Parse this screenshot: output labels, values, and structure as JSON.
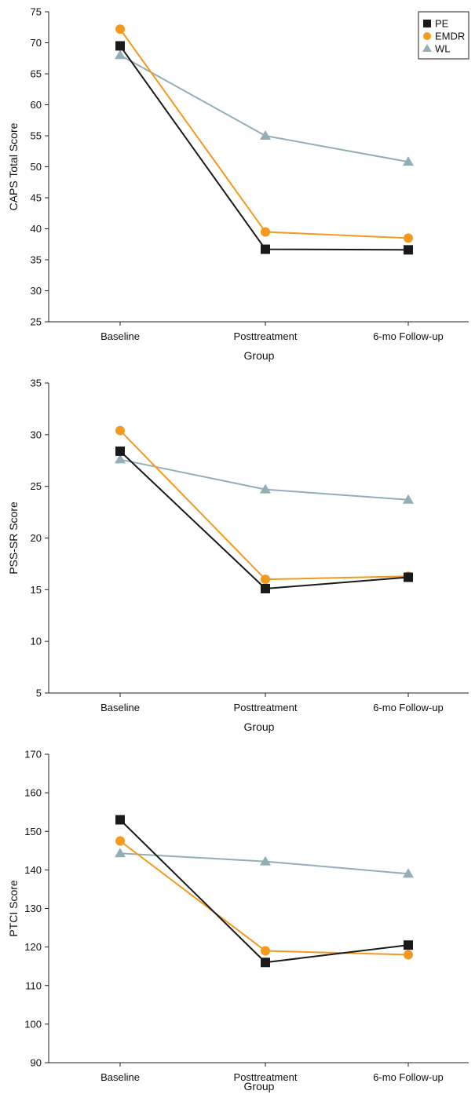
{
  "chart_data": [
    {
      "type": "line",
      "categories": [
        "Baseline",
        "Posttreatment",
        "6-mo Follow-up"
      ],
      "xlabel": "Group",
      "ylabel": "CAPS Total Score",
      "ylim": [
        25,
        75
      ],
      "yticks": [
        25,
        30,
        35,
        40,
        45,
        50,
        55,
        60,
        65,
        70,
        75
      ],
      "legend_position": "top-right",
      "series": [
        {
          "name": "PE",
          "color": "#1a1a1a",
          "marker": "square",
          "values": [
            69.5,
            36.7,
            36.6
          ]
        },
        {
          "name": "EMDR",
          "color": "#f39a1e",
          "marker": "circle",
          "values": [
            72.2,
            39.5,
            38.5
          ]
        },
        {
          "name": "WL",
          "color": "#94aeb8",
          "marker": "triangle",
          "values": [
            68.0,
            55.0,
            50.8
          ]
        }
      ]
    },
    {
      "type": "line",
      "categories": [
        "Baseline",
        "Posttreatment",
        "6-mo Follow-up"
      ],
      "xlabel": "Group",
      "ylabel": "PSS-SR Score",
      "ylim": [
        5,
        35
      ],
      "yticks": [
        5,
        10,
        15,
        20,
        25,
        30,
        35
      ],
      "series": [
        {
          "name": "PE",
          "color": "#1a1a1a",
          "marker": "square",
          "values": [
            28.4,
            15.1,
            16.2
          ]
        },
        {
          "name": "EMDR",
          "color": "#f39a1e",
          "marker": "circle",
          "values": [
            30.4,
            16.0,
            16.3
          ]
        },
        {
          "name": "WL",
          "color": "#94aeb8",
          "marker": "triangle",
          "values": [
            27.6,
            24.7,
            23.7
          ]
        }
      ]
    },
    {
      "type": "line",
      "categories": [
        "Baseline",
        "Posttreatment",
        "6-mo Follow-up"
      ],
      "xlabel": "Group",
      "ylabel": "PTCI Score",
      "ylim": [
        90,
        170
      ],
      "yticks": [
        90,
        100,
        110,
        120,
        130,
        140,
        150,
        160,
        170
      ],
      "series": [
        {
          "name": "PE",
          "color": "#1a1a1a",
          "marker": "square",
          "values": [
            153.0,
            116.0,
            120.5
          ]
        },
        {
          "name": "EMDR",
          "color": "#f39a1e",
          "marker": "circle",
          "values": [
            147.5,
            119.0,
            118.0
          ]
        },
        {
          "name": "WL",
          "color": "#94aeb8",
          "marker": "triangle",
          "values": [
            144.3,
            142.2,
            139.0
          ]
        }
      ]
    }
  ]
}
